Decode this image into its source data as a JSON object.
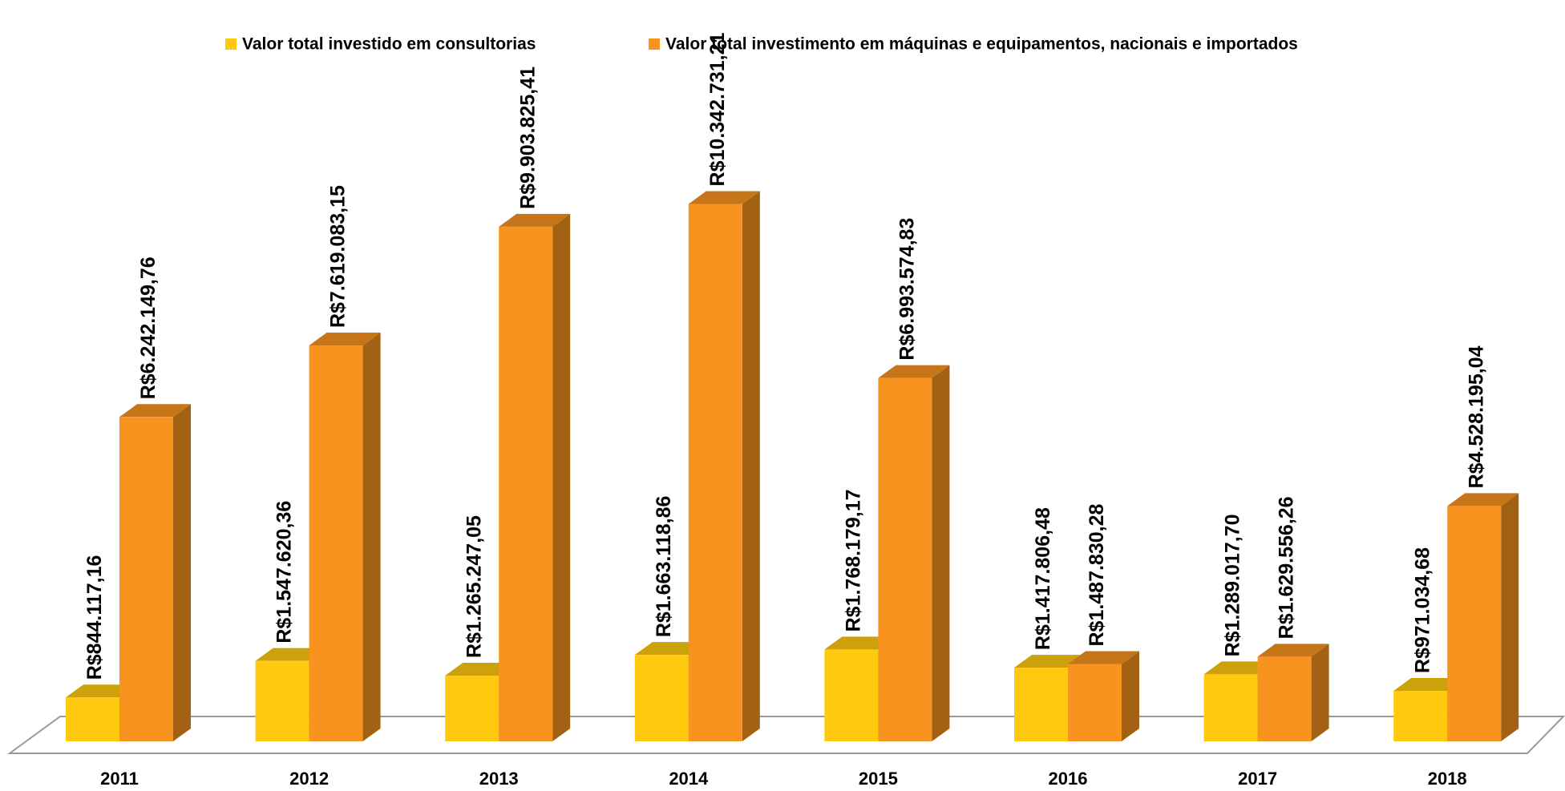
{
  "chart_data": {
    "type": "bar3d",
    "categories": [
      "2011",
      "2012",
      "2013",
      "2014",
      "2015",
      "2016",
      "2017",
      "2018"
    ],
    "series": [
      {
        "name": "Valor total investido em consultorias",
        "color": "#FFC90E",
        "values": [
          844117.16,
          1547620.36,
          1265247.05,
          1663118.86,
          1768179.17,
          1417806.48,
          1289017.7,
          971034.68
        ],
        "value_labels": [
          "R$844.117,16",
          "R$1.547.620,36",
          "R$1.265.247,05",
          "R$1.663.118,86",
          "R$1.768.179,17",
          "R$1.417.806,48",
          "R$1.289.017,70",
          "R$971.034,68"
        ]
      },
      {
        "name": "Valor total investimento em máquinas e equipamentos, nacionais e importados",
        "color": "#F7931E",
        "values": [
          6242149.76,
          7619083.15,
          9903825.41,
          10342731.21,
          6993574.83,
          1487830.28,
          1629556.26,
          4528195.04
        ],
        "value_labels": [
          "R$6.242.149,76",
          "R$7.619.083,15",
          "R$9.903.825,41",
          "R$10.342.731,21",
          "R$6.993.574,83",
          "R$1.487.830,28",
          "R$1.629.556,26",
          "R$4.528.195,04"
        ]
      }
    ],
    "ylim": [
      0,
      12000000
    ],
    "legend": "top"
  }
}
